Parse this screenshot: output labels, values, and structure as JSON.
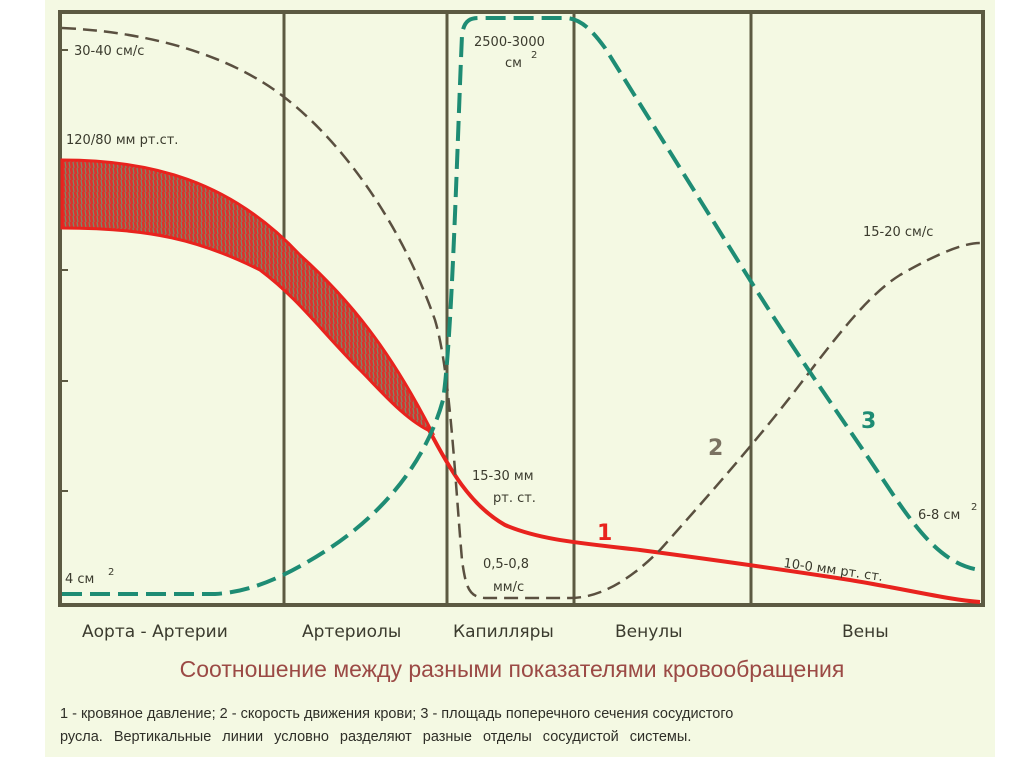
{
  "chart_data": {
    "type": "line",
    "title": "Соотношение между разными показателями кровообращения",
    "sections": [
      "Аорта - Артерии",
      "Артериолы",
      "Капилляры",
      "Венулы",
      "Вены"
    ],
    "series": [
      {
        "id": 1,
        "name": "кровяное давление",
        "color": "#e8231e",
        "annotations": [
          "120/80 мм рт.ст.",
          "15-30 мм",
          "рт. ст.",
          "10-0 мм рт. ст."
        ]
      },
      {
        "id": 2,
        "name": "скорость движения крови",
        "color": "#5a5040",
        "annotations": [
          "30-40 см/с",
          "0,5-0,8",
          "мм/с",
          "15-20 см/с"
        ]
      },
      {
        "id": 3,
        "name": "площадь поперечного сечения сосудистого русла",
        "color": "#1e8c74",
        "annotations": [
          "4 см",
          "2500-3000",
          "см",
          "6-8 см"
        ],
        "superscript": "2"
      }
    ],
    "series_labels": [
      "1",
      "2",
      "3"
    ]
  },
  "caption": {
    "line1": "1 - кровяное давление; 2 - скорость движения крови; 3 - площадь поперечного сечения сосудистого",
    "line2": "русла.  Вертикальные линии условно разделяют разные отделы сосудистой системы."
  }
}
